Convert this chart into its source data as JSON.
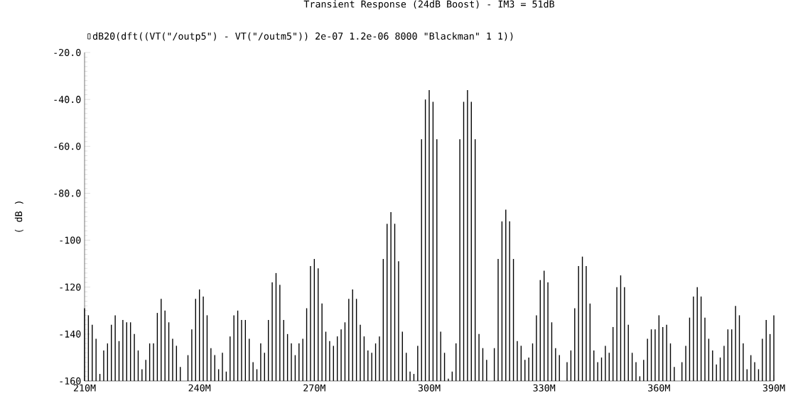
{
  "chart_data": {
    "type": "bar",
    "title": "Transient Response (24dB Boost) - IM3 = 51dB",
    "ylabel": "( dB )",
    "xlim": [
      210000000,
      390000000
    ],
    "xticks": [
      {
        "value": 210000000,
        "label": "210M"
      },
      {
        "value": 240000000,
        "label": "240M"
      },
      {
        "value": 270000000,
        "label": "270M"
      },
      {
        "value": 300000000,
        "label": "300M"
      },
      {
        "value": 330000000,
        "label": "330M"
      },
      {
        "value": 360000000,
        "label": "360M"
      },
      {
        "value": 390000000,
        "label": "390M"
      }
    ],
    "ylim": [
      -160,
      -20
    ],
    "yticks": [
      {
        "value": -20,
        "label": "-20.0"
      },
      {
        "value": -40,
        "label": "-40.0"
      },
      {
        "value": -60,
        "label": "-60.0"
      },
      {
        "value": -80,
        "label": "-80.0"
      },
      -100,
      -120,
      -140,
      -160
    ],
    "legend": "top left",
    "series": [
      {
        "name": "dB20(dft((VT(\"/outp5\") - VT(\"/outm5\")) 2e-07 1.2e-06 8000 \"Blackman\" 1 1))",
        "color": "#000000",
        "x": [
          210000000,
          211000000,
          212000000,
          213000000,
          214000000,
          215000000,
          216000000,
          217000000,
          218000000,
          219000000,
          220000000,
          221000000,
          222000000,
          223000000,
          224000000,
          225000000,
          226000000,
          227000000,
          228000000,
          229000000,
          230000000,
          231000000,
          232000000,
          233000000,
          234000000,
          235000000,
          236000000,
          237000000,
          238000000,
          239000000,
          240000000,
          241000000,
          242000000,
          243000000,
          244000000,
          245000000,
          246000000,
          247000000,
          248000000,
          249000000,
          250000000,
          251000000,
          252000000,
          253000000,
          254000000,
          255000000,
          256000000,
          257000000,
          258000000,
          259000000,
          260000000,
          261000000,
          262000000,
          263000000,
          264000000,
          265000000,
          266000000,
          267000000,
          268000000,
          269000000,
          270000000,
          271000000,
          272000000,
          273000000,
          274000000,
          275000000,
          276000000,
          277000000,
          278000000,
          279000000,
          280000000,
          281000000,
          282000000,
          283000000,
          284000000,
          285000000,
          286000000,
          287000000,
          288000000,
          289000000,
          290000000,
          291000000,
          292000000,
          293000000,
          294000000,
          295000000,
          296000000,
          297000000,
          298000000,
          299000000,
          300000000,
          301000000,
          302000000,
          303000000,
          304000000,
          305000000,
          306000000,
          307000000,
          308000000,
          309000000,
          310000000,
          311000000,
          312000000,
          313000000,
          314000000,
          315000000,
          316000000,
          317000000,
          318000000,
          319000000,
          320000000,
          321000000,
          322000000,
          323000000,
          324000000,
          325000000,
          326000000,
          327000000,
          328000000,
          329000000,
          330000000,
          331000000,
          332000000,
          333000000,
          334000000,
          335000000,
          336000000,
          337000000,
          338000000,
          339000000,
          340000000,
          341000000,
          342000000,
          343000000,
          344000000,
          345000000,
          346000000,
          347000000,
          348000000,
          349000000,
          350000000,
          351000000,
          352000000,
          353000000,
          354000000,
          355000000,
          356000000,
          357000000,
          358000000,
          359000000,
          360000000,
          361000000,
          362000000,
          363000000,
          364000000,
          365000000,
          366000000,
          367000000,
          368000000,
          369000000,
          370000000,
          371000000,
          372000000,
          373000000,
          374000000,
          375000000,
          376000000,
          377000000,
          378000000,
          379000000,
          380000000,
          381000000,
          382000000,
          383000000,
          384000000,
          385000000,
          386000000,
          387000000,
          388000000,
          389000000,
          390000000
        ],
        "base": [
          -160,
          -160,
          -160,
          -160,
          -160,
          -160,
          -160,
          -160,
          -160,
          -160,
          -160,
          -160,
          -160,
          -160,
          -160,
          -160,
          -160,
          -160,
          -160,
          -160,
          -160,
          -160,
          -160,
          -160,
          -160,
          -160,
          null,
          -160,
          -160,
          -160,
          -160,
          -160,
          -160,
          -160,
          -160,
          -160,
          -160,
          -160,
          -160,
          -160,
          -160,
          -160,
          -160,
          -160,
          -160,
          -160,
          -160,
          -160,
          -160,
          -160,
          -160,
          -160,
          -160,
          -160,
          -160,
          -160,
          -160,
          -160,
          -160,
          -160,
          -160,
          -160,
          -160,
          -160,
          -160,
          -160,
          -160,
          -160,
          -160,
          -160,
          -160,
          -160,
          -160,
          -160,
          -160,
          -160,
          -160,
          -160,
          -160,
          -160,
          -160,
          -160,
          -160,
          -160,
          -160,
          -160,
          -160,
          -160,
          -160,
          -160,
          -160,
          -160,
          -160,
          -160,
          -160,
          -160,
          -160,
          -160,
          -160,
          -160,
          -160,
          -160,
          -160,
          -160,
          -160,
          -160,
          null,
          -160,
          -160,
          -160,
          -160,
          -160,
          -160,
          -160,
          -160,
          -160,
          -160,
          -160,
          -160,
          -160,
          -160,
          -160,
          -160,
          -160,
          -160,
          null,
          -160,
          -160,
          -160,
          -160,
          -160,
          -160,
          -160,
          -160,
          -160,
          -160,
          -160,
          -160,
          -160,
          -160,
          -160,
          -160,
          -160,
          -160,
          -160,
          -160,
          -160,
          -160,
          -160,
          -160,
          -160,
          -160,
          -160,
          -160,
          -160,
          null,
          -160,
          -160,
          -160,
          -160,
          -160,
          -160,
          -160,
          -160,
          -160,
          -160,
          -160,
          -160,
          -160,
          -160,
          -160,
          -160,
          -160,
          -160,
          -160,
          -160,
          -160,
          -160,
          -160,
          -160,
          -160
        ],
        "values": [
          31,
          28,
          24,
          18,
          3,
          13,
          16,
          24,
          28,
          17,
          26,
          25,
          25,
          20,
          13,
          5,
          9,
          16,
          16,
          29,
          35,
          30,
          25,
          18,
          15,
          6,
          null,
          11,
          22,
          35,
          39,
          36,
          28,
          14,
          11,
          5,
          12,
          4,
          19,
          28,
          30,
          26,
          26,
          18,
          8,
          5,
          16,
          12,
          26,
          42,
          46,
          41,
          26,
          20,
          16,
          11,
          16,
          18,
          31,
          49,
          52,
          48,
          33,
          21,
          17,
          15,
          19,
          22,
          25,
          35,
          39,
          35,
          24,
          19,
          13,
          12,
          16,
          19,
          52,
          67,
          72,
          67,
          51,
          21,
          12,
          4,
          3,
          15,
          103,
          120,
          124,
          119,
          103,
          21,
          12,
          1,
          4,
          16,
          103,
          119,
          124,
          119,
          103,
          20,
          14,
          9,
          null,
          14,
          52,
          68,
          73,
          68,
          52,
          17,
          15,
          9,
          10,
          16,
          28,
          43,
          47,
          42,
          25,
          14,
          11,
          null,
          8,
          13,
          31,
          49,
          53,
          49,
          33,
          13,
          8,
          10,
          15,
          12,
          23,
          40,
          45,
          40,
          24,
          12,
          8,
          2,
          9,
          18,
          22,
          22,
          28,
          23,
          24,
          16,
          6,
          null,
          8,
          15,
          27,
          36,
          40,
          36,
          27,
          18,
          13,
          7,
          10,
          15,
          22,
          22,
          32,
          28,
          16,
          5,
          11,
          8,
          5,
          18,
          26,
          20,
          28
        ]
      }
    ]
  }
}
